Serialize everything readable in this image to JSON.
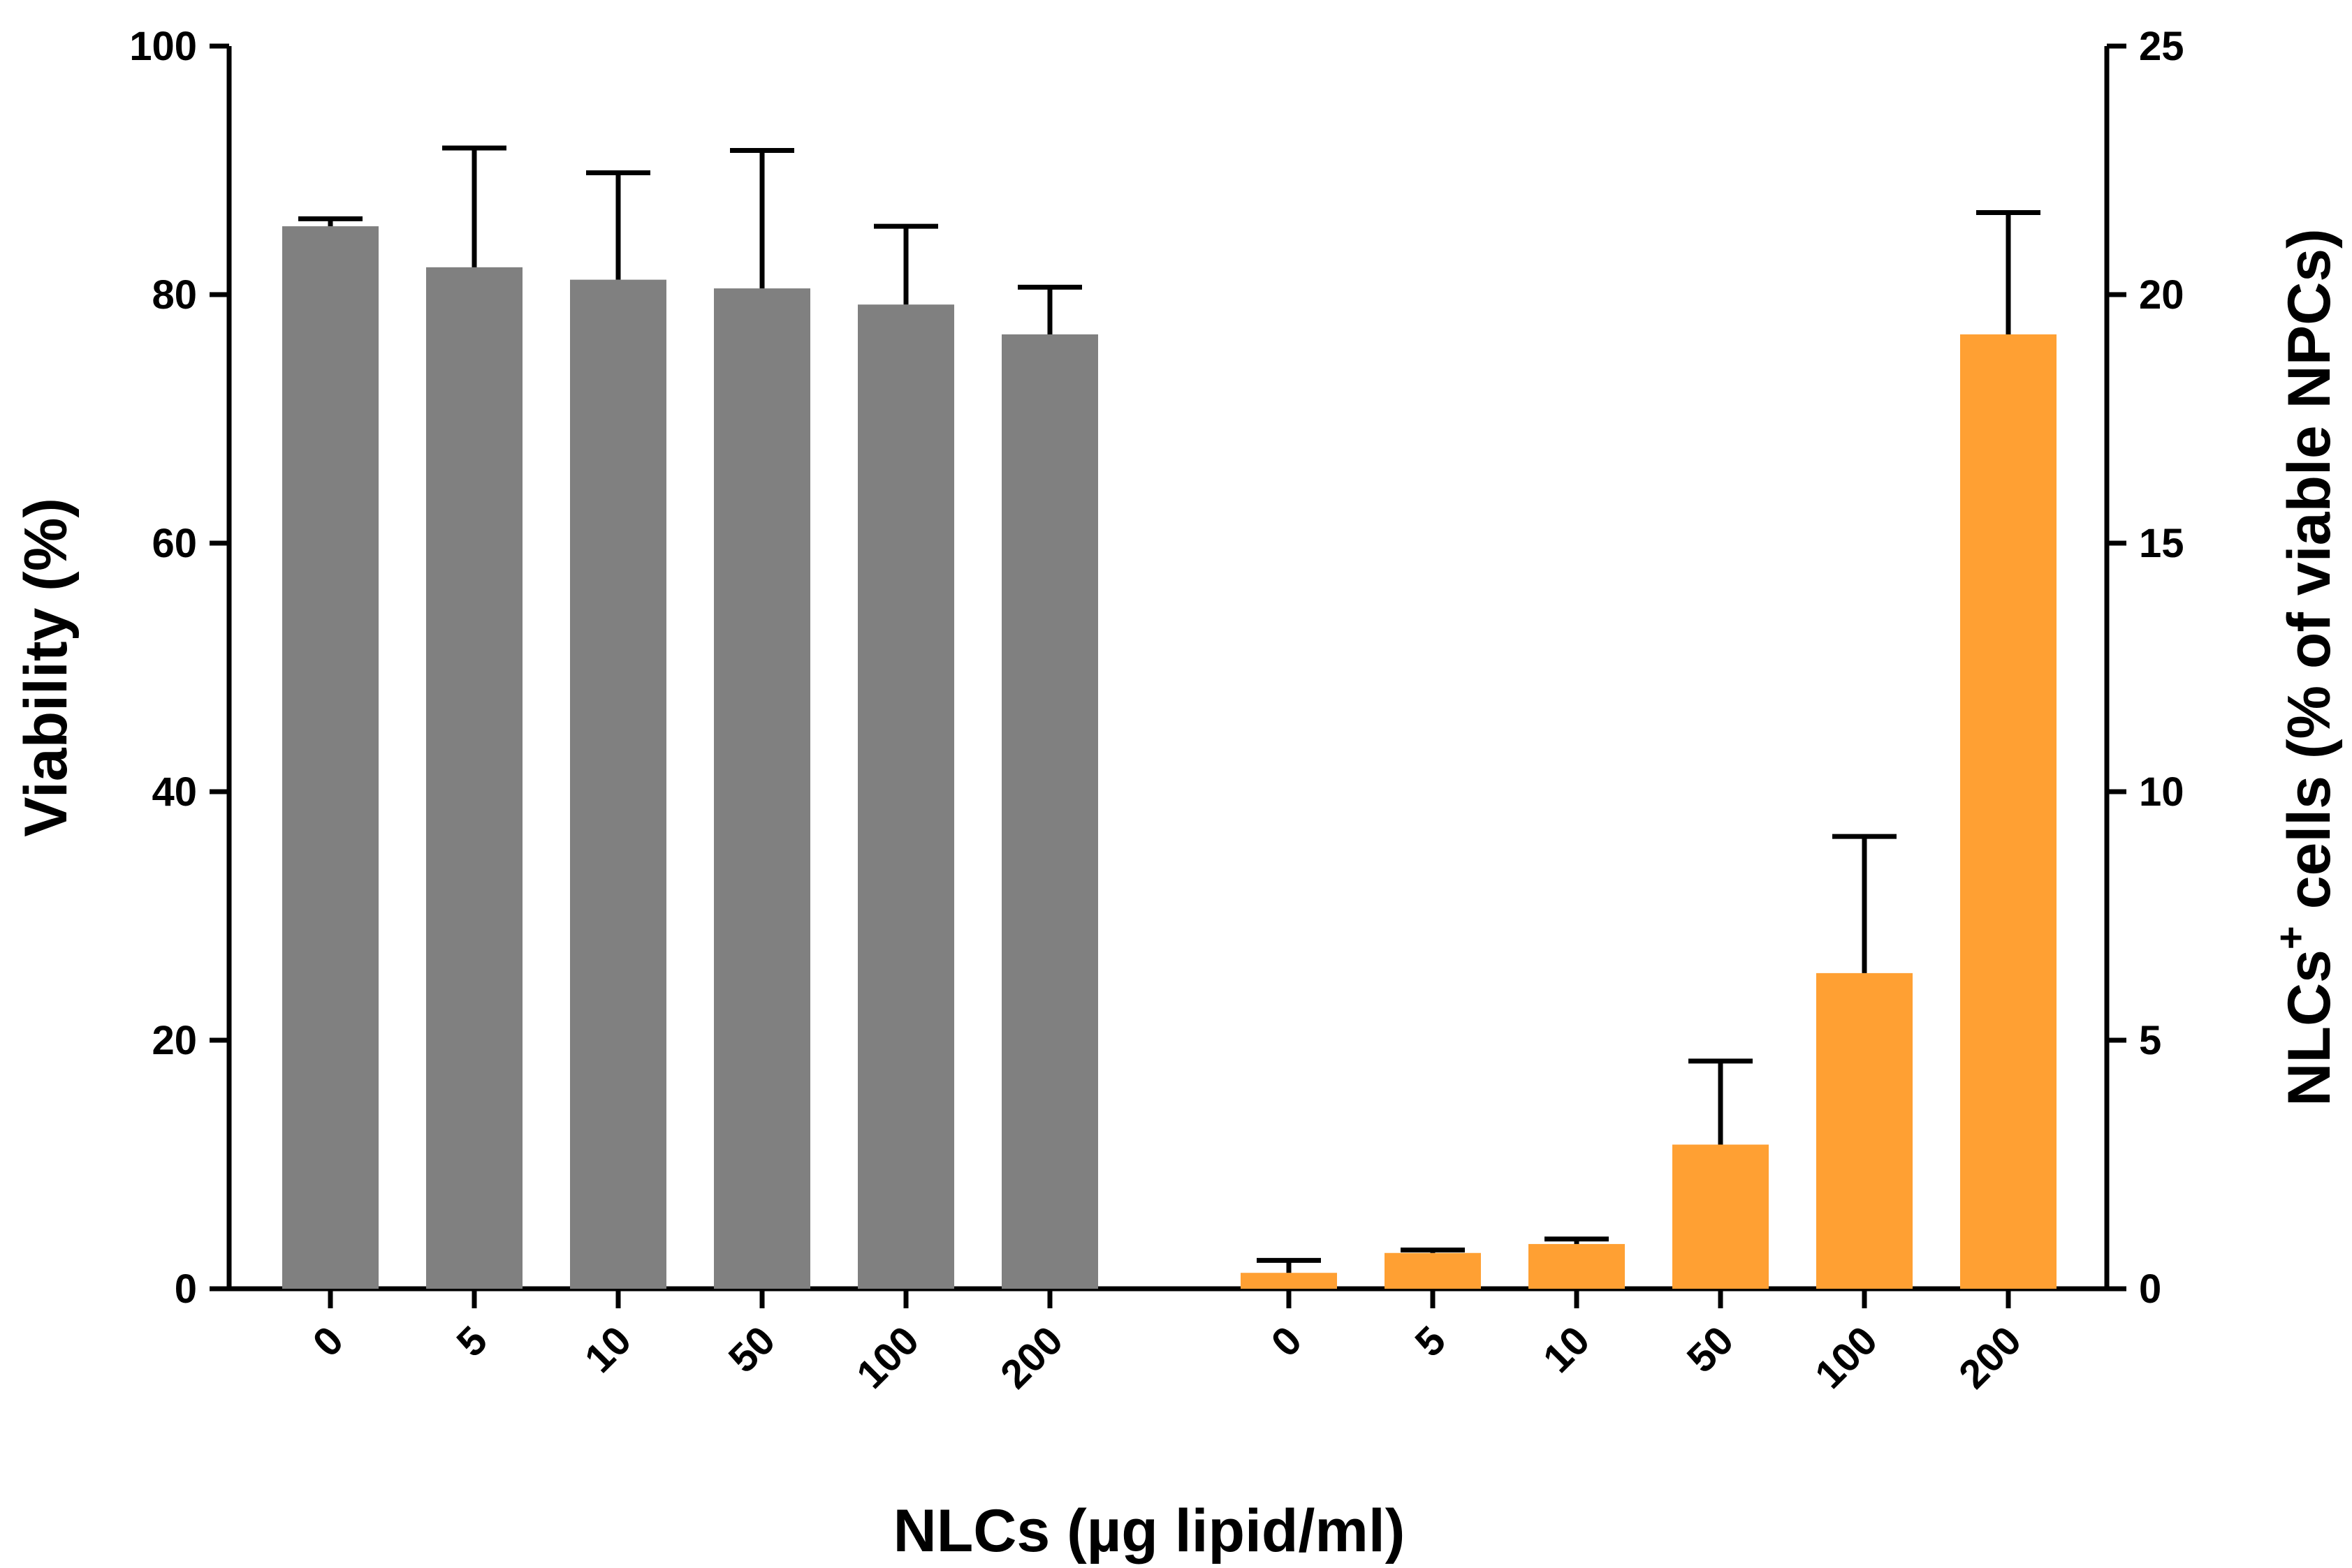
{
  "chart_data": {
    "type": "bar",
    "xlabel": "NLCs (µg lipid/ml)",
    "ylabel_left": "Viability (%)",
    "ylabel_right_main": "NLCs",
    "ylabel_right_sup": "+",
    "ylabel_right_tail": " cells (% of viable NPCs)",
    "left_axis": {
      "min": 0,
      "max": 100,
      "ticks": [
        0,
        20,
        40,
        60,
        80,
        100
      ]
    },
    "right_axis": {
      "min": 0,
      "max": 25,
      "ticks": [
        0,
        5,
        10,
        15,
        20,
        25
      ]
    },
    "series": [
      {
        "name": "Viability",
        "axis": "left",
        "color": "#808080",
        "categories": [
          "0",
          "5",
          "10",
          "50",
          "100",
          "200"
        ],
        "values": [
          85.5,
          82.2,
          81.2,
          80.5,
          79.2,
          76.8
        ],
        "errors": [
          0.6,
          9.6,
          8.6,
          11.1,
          6.3,
          3.8
        ]
      },
      {
        "name": "NLCs+ cells",
        "axis": "right",
        "color": "#FFA033",
        "categories": [
          "0",
          "5",
          "10",
          "50",
          "100",
          "200"
        ],
        "values": [
          0.32,
          0.72,
          0.9,
          2.9,
          6.35,
          19.2
        ],
        "errors": [
          0.25,
          0.06,
          0.1,
          1.68,
          2.75,
          2.45
        ]
      }
    ]
  }
}
